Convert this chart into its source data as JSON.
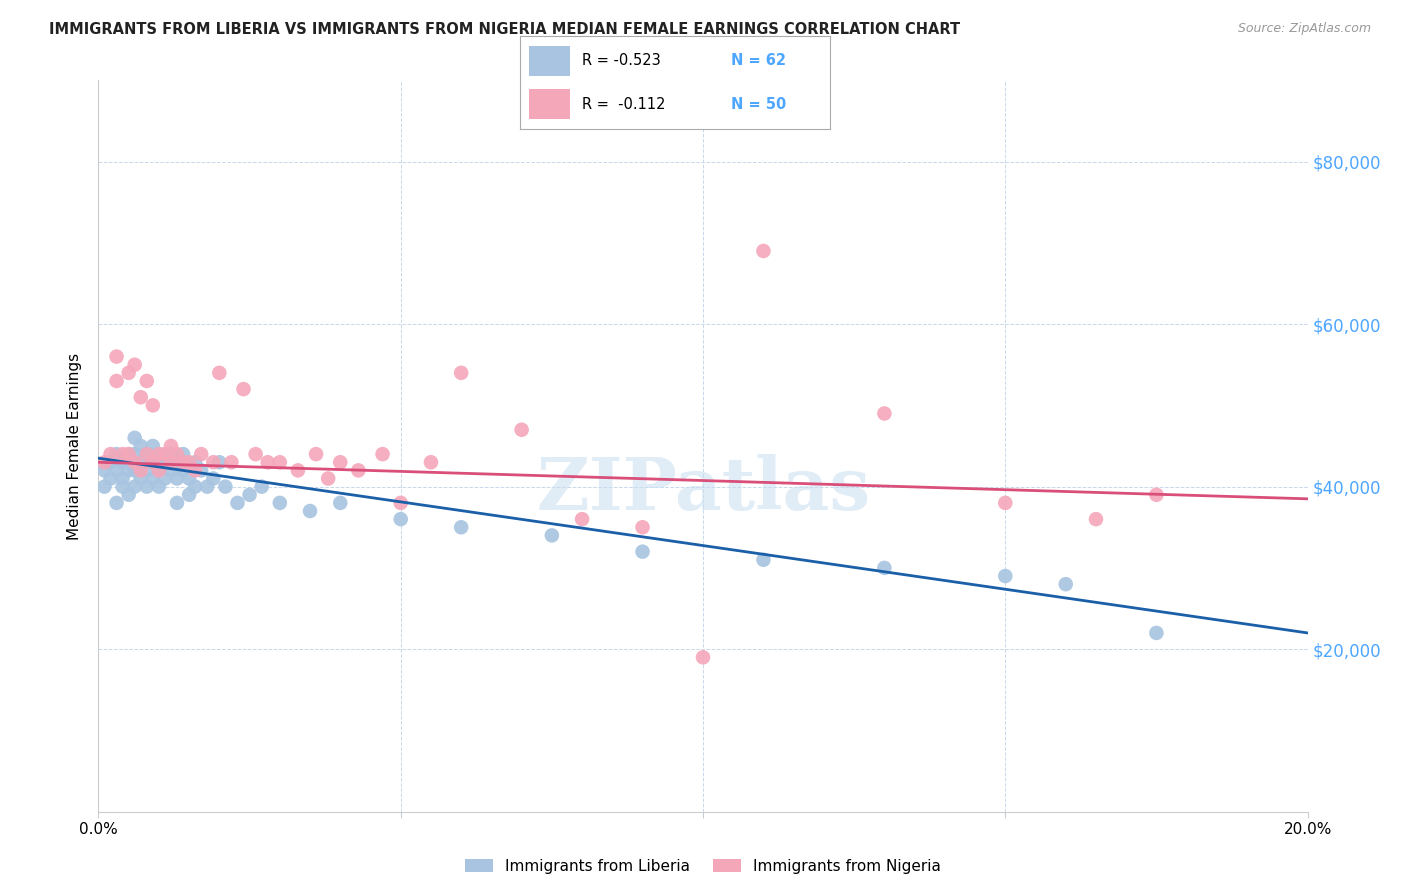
{
  "title": "IMMIGRANTS FROM LIBERIA VS IMMIGRANTS FROM NIGERIA MEDIAN FEMALE EARNINGS CORRELATION CHART",
  "source": "Source: ZipAtlas.com",
  "ylabel": "Median Female Earnings",
  "xlim": [
    0.0,
    0.2
  ],
  "ylim": [
    0,
    90000
  ],
  "yticks": [
    0,
    20000,
    40000,
    60000,
    80000
  ],
  "ytick_labels": [
    "",
    "$20,000",
    "$40,000",
    "$60,000",
    "$80,000"
  ],
  "xticks": [
    0.0,
    0.05,
    0.1,
    0.15,
    0.2
  ],
  "xtick_labels": [
    "0.0%",
    "",
    "",
    "",
    "20.0%"
  ],
  "legend_r1": "-0.523",
  "legend_n1": "62",
  "legend_r2": "-0.112",
  "legend_n2": "50",
  "color_liberia": "#a8c4e0",
  "color_nigeria": "#f4a7b9",
  "line_color_liberia": "#1a5fa8",
  "line_color_nigeria": "#d94f7a",
  "text_blue": "#4da6ff",
  "watermark": "ZIPatlas",
  "liberia_x": [
    0.001,
    0.001,
    0.002,
    0.002,
    0.003,
    0.003,
    0.003,
    0.004,
    0.004,
    0.004,
    0.005,
    0.005,
    0.005,
    0.006,
    0.006,
    0.006,
    0.006,
    0.007,
    0.007,
    0.007,
    0.008,
    0.008,
    0.008,
    0.009,
    0.009,
    0.009,
    0.01,
    0.01,
    0.01,
    0.011,
    0.011,
    0.012,
    0.012,
    0.013,
    0.013,
    0.013,
    0.014,
    0.014,
    0.015,
    0.015,
    0.016,
    0.016,
    0.017,
    0.018,
    0.019,
    0.02,
    0.021,
    0.023,
    0.025,
    0.027,
    0.03,
    0.035,
    0.04,
    0.05,
    0.06,
    0.075,
    0.09,
    0.11,
    0.13,
    0.15,
    0.16,
    0.175
  ],
  "liberia_y": [
    40000,
    42000,
    43000,
    41000,
    44000,
    42000,
    38000,
    43000,
    41000,
    40000,
    44000,
    42000,
    39000,
    46000,
    44000,
    42000,
    40000,
    45000,
    43000,
    41000,
    44000,
    42000,
    40000,
    43000,
    45000,
    41000,
    44000,
    42000,
    40000,
    43000,
    41000,
    44000,
    42000,
    43000,
    41000,
    38000,
    44000,
    42000,
    41000,
    39000,
    43000,
    40000,
    42000,
    40000,
    41000,
    43000,
    40000,
    38000,
    39000,
    40000,
    38000,
    37000,
    38000,
    36000,
    35000,
    34000,
    32000,
    31000,
    30000,
    29000,
    28000,
    22000
  ],
  "nigeria_x": [
    0.001,
    0.002,
    0.003,
    0.003,
    0.004,
    0.005,
    0.005,
    0.006,
    0.006,
    0.007,
    0.007,
    0.008,
    0.008,
    0.009,
    0.009,
    0.01,
    0.01,
    0.011,
    0.012,
    0.012,
    0.013,
    0.014,
    0.015,
    0.016,
    0.017,
    0.019,
    0.02,
    0.022,
    0.024,
    0.026,
    0.028,
    0.03,
    0.033,
    0.036,
    0.038,
    0.04,
    0.043,
    0.047,
    0.05,
    0.055,
    0.06,
    0.07,
    0.08,
    0.09,
    0.1,
    0.11,
    0.13,
    0.15,
    0.165,
    0.175
  ],
  "nigeria_y": [
    43000,
    44000,
    56000,
    53000,
    44000,
    54000,
    44000,
    55000,
    43000,
    51000,
    42000,
    53000,
    44000,
    50000,
    43000,
    44000,
    42000,
    44000,
    45000,
    43000,
    44000,
    43000,
    43000,
    42000,
    44000,
    43000,
    54000,
    43000,
    52000,
    44000,
    43000,
    43000,
    42000,
    44000,
    41000,
    43000,
    42000,
    44000,
    38000,
    43000,
    54000,
    47000,
    36000,
    35000,
    19000,
    69000,
    49000,
    38000,
    36000,
    39000
  ]
}
